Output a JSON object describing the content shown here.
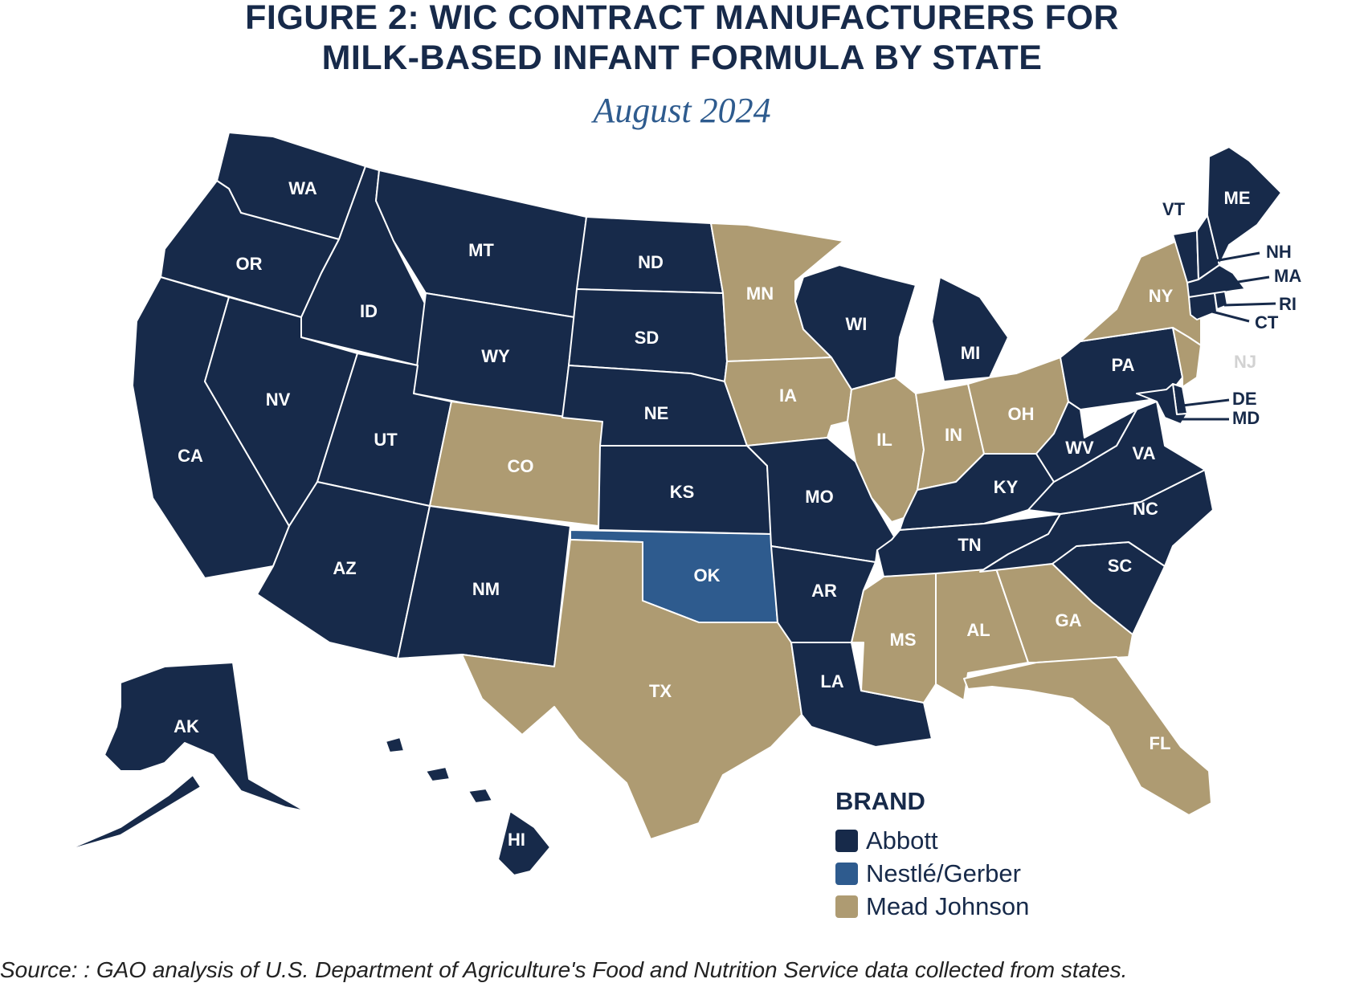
{
  "title_line1": "FIGURE 2: WIC CONTRACT MANUFACTURERS FOR",
  "title_line2": "MILK-BASED INFANT FORMULA BY STATE",
  "subtitle": "August 2024",
  "legend": {
    "title": "BRAND",
    "items": [
      {
        "key": "Abbott",
        "label": "Abbott",
        "color": "#172a4a"
      },
      {
        "key": "Nestle",
        "label": "Nestlé/Gerber",
        "color": "#2e5b8e"
      },
      {
        "key": "Mead",
        "label": "Mead Johnson",
        "color": "#ae9b72"
      }
    ]
  },
  "states": {
    "WA": "Abbott",
    "OR": "Abbott",
    "CA": "Abbott",
    "ID": "Abbott",
    "NV": "Abbott",
    "MT": "Abbott",
    "WY": "Abbott",
    "UT": "Abbott",
    "AZ": "Abbott",
    "CO": "Mead",
    "NM": "Abbott",
    "ND": "Abbott",
    "SD": "Abbott",
    "NE": "Abbott",
    "KS": "Abbott",
    "OK": "Nestle",
    "TX": "Mead",
    "MN": "Mead",
    "IA": "Mead",
    "MO": "Abbott",
    "AR": "Abbott",
    "LA": "Abbott",
    "WI": "Abbott",
    "IL": "Mead",
    "MI": "Abbott",
    "IN": "Mead",
    "OH": "Mead",
    "KY": "Abbott",
    "TN": "Abbott",
    "MS": "Mead",
    "AL": "Mead",
    "GA": "Mead",
    "FL": "Mead",
    "SC": "Abbott",
    "NC": "Abbott",
    "VA": "Abbott",
    "WV": "Abbott",
    "PA": "Abbott",
    "NY": "Mead",
    "VT": "Abbott",
    "NH": "Abbott",
    "ME": "Abbott",
    "MA": "Abbott",
    "RI": "Abbott",
    "CT": "Abbott",
    "NJ": "Mead",
    "DE": "Abbott",
    "MD": "Abbott",
    "AK": "Abbott",
    "HI": "Abbott"
  },
  "source": "Source: : GAO analysis of U.S. Department of Agriculture's Food and Nutrition Service data collected from states."
}
